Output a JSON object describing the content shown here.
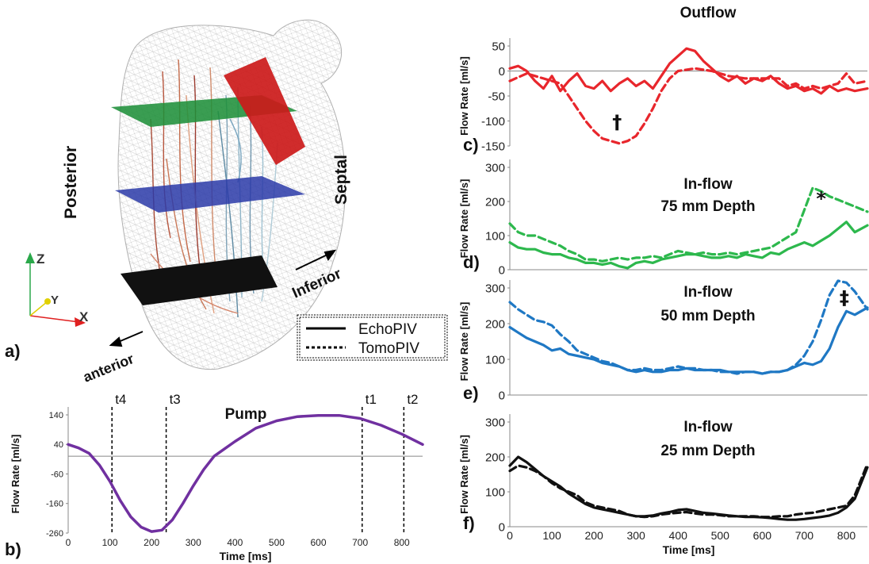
{
  "panel_a": {
    "letter": "a)",
    "labels": {
      "posterior": "Posterior",
      "septal": "Septal",
      "inferior": "Inferior",
      "anterior": "anterior"
    },
    "axes": {
      "z": "Z",
      "y": "Y",
      "x": "X"
    },
    "colors": {
      "plane_top": "#1f8f3a",
      "plane_mid": "#2a3aa8",
      "plane_bottom": "#111111",
      "outflow_plane": "#cc1a1a",
      "axis_z": "#2aa84a",
      "axis_y": "#e0d000",
      "axis_x": "#e02020"
    }
  },
  "legend": {
    "solid": "EchoPIV",
    "dashed": "TomoPIV"
  },
  "chart_data": [
    {
      "id": "b",
      "type": "line",
      "letter": "b)",
      "title": "Pump",
      "xlabel": "Time [ms]",
      "ylabel": "Flow Rate [ml/s]",
      "xlim": [
        0,
        850
      ],
      "ylim": [
        -260,
        140
      ],
      "xticks": [
        "0",
        "100",
        "200",
        "300",
        "400",
        "500",
        "600",
        "700",
        "800"
      ],
      "yticks": [
        "-260",
        "-160",
        "-60",
        "40",
        "140"
      ],
      "vlines": [
        {
          "x": 105,
          "label": "t4"
        },
        {
          "x": 235,
          "label": "t3"
        },
        {
          "x": 705,
          "label": "t1"
        },
        {
          "x": 805,
          "label": "t2"
        }
      ],
      "color": "#7030a0",
      "series": [
        {
          "style": "solid",
          "x": [
            0,
            25,
            50,
            75,
            100,
            125,
            150,
            175,
            200,
            225,
            250,
            275,
            300,
            325,
            350,
            375,
            400,
            450,
            500,
            550,
            600,
            650,
            700,
            750,
            800,
            850
          ],
          "y": [
            40,
            28,
            10,
            -30,
            -85,
            -150,
            -205,
            -240,
            -255,
            -250,
            -215,
            -160,
            -100,
            -45,
            0,
            25,
            50,
            95,
            120,
            134,
            138,
            138,
            128,
            105,
            75,
            40
          ]
        }
      ]
    },
    {
      "id": "c",
      "type": "line",
      "letter": "c)",
      "title": "Outflow",
      "xlabel": "",
      "ylabel": "Flow Rate [ml/s]",
      "xlim": [
        0,
        850
      ],
      "ylim": [
        -150,
        50
      ],
      "xticks": [],
      "yticks": [
        "-150",
        "-100",
        "-50",
        "0",
        "50"
      ],
      "annotation": {
        "text": "†",
        "x": 255,
        "y": -115
      },
      "color": "#e8262c",
      "series": [
        {
          "style": "solid",
          "x": [
            0,
            20,
            40,
            60,
            80,
            100,
            120,
            140,
            160,
            180,
            200,
            220,
            240,
            260,
            280,
            300,
            320,
            340,
            360,
            380,
            400,
            420,
            440,
            460,
            480,
            500,
            520,
            540,
            560,
            580,
            600,
            620,
            640,
            660,
            680,
            700,
            720,
            740,
            760,
            780,
            800,
            820,
            850
          ],
          "y": [
            5,
            10,
            0,
            -20,
            -35,
            -10,
            -40,
            -20,
            -5,
            -30,
            -35,
            -20,
            -40,
            -25,
            -15,
            -30,
            -20,
            -35,
            -10,
            15,
            30,
            45,
            40,
            20,
            5,
            -10,
            -20,
            -10,
            -25,
            -15,
            -20,
            -10,
            -25,
            -35,
            -30,
            -40,
            -35,
            -45,
            -30,
            -40,
            -35,
            -40,
            -35
          ]
        },
        {
          "style": "dashed",
          "x": [
            0,
            40,
            80,
            120,
            140,
            160,
            180,
            200,
            220,
            240,
            260,
            280,
            300,
            320,
            340,
            360,
            380,
            400,
            440,
            480,
            520,
            560,
            600,
            640,
            660,
            680,
            700,
            720,
            740,
            760,
            780,
            800,
            820,
            850
          ],
          "y": [
            -20,
            -5,
            -15,
            -25,
            -50,
            -75,
            -100,
            -120,
            -135,
            -140,
            -145,
            -140,
            -130,
            -105,
            -75,
            -40,
            -15,
            0,
            5,
            0,
            -10,
            -15,
            -15,
            -15,
            -30,
            -25,
            -35,
            -30,
            -35,
            -30,
            -25,
            -5,
            -25,
            -20
          ]
        }
      ]
    },
    {
      "id": "d",
      "type": "line",
      "letter": "d)",
      "title": "In-flow",
      "subtitle": "75 mm Depth",
      "xlabel": "",
      "ylabel": "Flow Rate [ml/s]",
      "xlim": [
        0,
        850
      ],
      "ylim": [
        0,
        300
      ],
      "xticks": [],
      "yticks": [
        "0",
        "100",
        "200",
        "300"
      ],
      "annotation": {
        "text": "*",
        "x": 740,
        "y": 190
      },
      "color": "#2db84d",
      "series": [
        {
          "style": "solid",
          "x": [
            0,
            20,
            40,
            60,
            80,
            100,
            120,
            140,
            160,
            180,
            200,
            220,
            240,
            260,
            280,
            300,
            320,
            340,
            360,
            380,
            400,
            420,
            440,
            460,
            480,
            500,
            520,
            540,
            560,
            580,
            600,
            620,
            640,
            660,
            680,
            700,
            720,
            740,
            760,
            780,
            800,
            820,
            850
          ],
          "y": [
            80,
            65,
            60,
            60,
            50,
            45,
            45,
            35,
            30,
            20,
            20,
            15,
            20,
            10,
            5,
            20,
            25,
            20,
            30,
            35,
            40,
            45,
            45,
            40,
            35,
            35,
            40,
            35,
            45,
            40,
            35,
            50,
            45,
            60,
            70,
            80,
            70,
            85,
            100,
            120,
            140,
            110,
            130
          ]
        },
        {
          "style": "dashed",
          "x": [
            0,
            20,
            40,
            60,
            80,
            100,
            120,
            140,
            160,
            180,
            200,
            220,
            240,
            260,
            280,
            300,
            320,
            340,
            360,
            380,
            400,
            420,
            440,
            460,
            480,
            500,
            520,
            540,
            560,
            580,
            600,
            620,
            640,
            660,
            680,
            700,
            720,
            740,
            760,
            780,
            800,
            820,
            850
          ],
          "y": [
            135,
            110,
            100,
            100,
            90,
            80,
            70,
            55,
            45,
            30,
            30,
            25,
            30,
            35,
            30,
            35,
            35,
            40,
            35,
            45,
            55,
            50,
            45,
            50,
            45,
            45,
            50,
            45,
            50,
            55,
            60,
            65,
            80,
            95,
            110,
            175,
            240,
            230,
            215,
            205,
            195,
            185,
            170
          ]
        }
      ]
    },
    {
      "id": "e",
      "type": "line",
      "letter": "e)",
      "title": "In-flow",
      "subtitle": "50 mm Depth",
      "xlabel": "",
      "ylabel": "Flow Rate [ml/s]",
      "xlim": [
        0,
        850
      ],
      "ylim": [
        0,
        300
      ],
      "xticks": [],
      "yticks": [
        "0",
        "100",
        "200",
        "300"
      ],
      "annotation": {
        "text": "‡",
        "x": 795,
        "y": 255
      },
      "color": "#1f78c4",
      "series": [
        {
          "style": "solid",
          "x": [
            0,
            20,
            40,
            60,
            80,
            100,
            120,
            140,
            160,
            180,
            200,
            220,
            240,
            260,
            280,
            300,
            320,
            340,
            360,
            380,
            400,
            420,
            440,
            460,
            480,
            500,
            520,
            540,
            560,
            580,
            600,
            620,
            640,
            660,
            680,
            700,
            720,
            740,
            760,
            780,
            800,
            820,
            850
          ],
          "y": [
            190,
            175,
            160,
            150,
            140,
            125,
            130,
            115,
            110,
            105,
            100,
            90,
            85,
            80,
            70,
            65,
            70,
            65,
            65,
            70,
            70,
            75,
            70,
            70,
            70,
            70,
            65,
            65,
            65,
            65,
            60,
            65,
            65,
            70,
            80,
            90,
            85,
            95,
            130,
            190,
            235,
            225,
            245
          ]
        },
        {
          "style": "dashed",
          "x": [
            0,
            20,
            40,
            60,
            80,
            100,
            120,
            140,
            160,
            180,
            200,
            220,
            240,
            260,
            280,
            300,
            320,
            340,
            360,
            380,
            400,
            420,
            440,
            460,
            480,
            500,
            520,
            540,
            560,
            580,
            600,
            620,
            640,
            660,
            680,
            700,
            720,
            740,
            760,
            780,
            800,
            820,
            850
          ],
          "y": [
            260,
            240,
            225,
            210,
            205,
            195,
            170,
            150,
            125,
            115,
            105,
            95,
            90,
            80,
            70,
            70,
            75,
            70,
            70,
            75,
            80,
            75,
            75,
            70,
            70,
            65,
            65,
            60,
            65,
            65,
            60,
            65,
            65,
            70,
            85,
            110,
            150,
            210,
            280,
            320,
            315,
            290,
            240
          ]
        }
      ]
    },
    {
      "id": "f",
      "type": "line",
      "letter": "f)",
      "title": "In-flow",
      "subtitle": "25 mm Depth",
      "xlabel": "Time [ms]",
      "ylabel": "Flow Rate [ml/s]",
      "xlim": [
        0,
        850
      ],
      "ylim": [
        0,
        300
      ],
      "xticks": [
        "0",
        "100",
        "200",
        "300",
        "400",
        "500",
        "600",
        "700",
        "800"
      ],
      "yticks": [
        "0",
        "100",
        "200",
        "300"
      ],
      "color": "#111111",
      "series": [
        {
          "style": "solid",
          "x": [
            0,
            20,
            40,
            60,
            80,
            100,
            120,
            140,
            160,
            180,
            200,
            220,
            240,
            260,
            280,
            300,
            320,
            340,
            360,
            380,
            400,
            420,
            440,
            460,
            480,
            500,
            520,
            540,
            560,
            580,
            600,
            620,
            640,
            660,
            680,
            700,
            720,
            740,
            760,
            780,
            800,
            820,
            850
          ],
          "y": [
            175,
            200,
            185,
            165,
            145,
            130,
            115,
            95,
            80,
            65,
            55,
            50,
            45,
            40,
            35,
            30,
            30,
            32,
            38,
            42,
            48,
            50,
            45,
            40,
            38,
            35,
            32,
            30,
            28,
            28,
            27,
            25,
            22,
            20,
            20,
            22,
            25,
            28,
            32,
            40,
            55,
            80,
            170
          ]
        },
        {
          "style": "dashed",
          "x": [
            0,
            20,
            40,
            60,
            80,
            100,
            120,
            140,
            160,
            180,
            200,
            220,
            240,
            260,
            280,
            300,
            320,
            340,
            360,
            380,
            400,
            420,
            440,
            460,
            480,
            500,
            520,
            540,
            560,
            580,
            600,
            620,
            640,
            660,
            680,
            700,
            720,
            740,
            760,
            780,
            800,
            820,
            850
          ],
          "y": [
            160,
            175,
            170,
            160,
            145,
            125,
            110,
            100,
            90,
            70,
            60,
            55,
            50,
            45,
            35,
            30,
            28,
            30,
            35,
            38,
            40,
            42,
            38,
            35,
            35,
            33,
            30,
            30,
            30,
            30,
            28,
            28,
            30,
            30,
            35,
            38,
            40,
            45,
            50,
            55,
            60,
            90,
            180
          ]
        }
      ]
    }
  ]
}
